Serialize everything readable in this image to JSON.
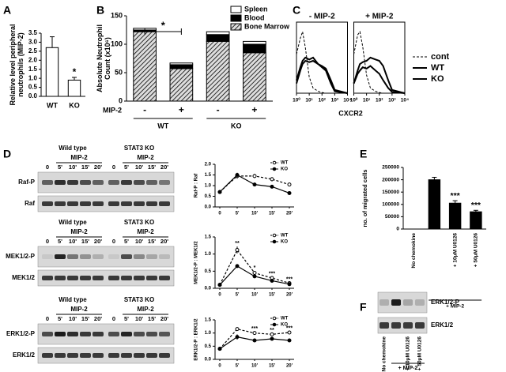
{
  "panel_labels": [
    "A",
    "B",
    "C",
    "D",
    "E",
    "F"
  ],
  "chart_data": [
    {
      "type": "bar",
      "y_label": "Relative level peripheral neutrophils (MIP-2)",
      "categories": [
        "WT",
        "KO"
      ],
      "values": [
        2.7,
        0.9
      ],
      "errors": [
        0.6,
        0.15
      ],
      "significance": [
        null,
        "*"
      ],
      "color": "#ffffff",
      "ylim": [
        0,
        3.5
      ],
      "yticks": [
        {
          "value": 0,
          "label": "0.0"
        },
        0.5,
        {
          "value": 1,
          "label": "1.0"
        },
        1.5,
        {
          "value": 2,
          "label": "2.0"
        },
        2.5,
        {
          "value": 3,
          "label": "3.0"
        },
        3.5
      ]
    },
    {
      "type": "stacked-bar",
      "y_label": "Absolute Neutrophil Count (x10⁶)",
      "categories": [
        "-",
        "+",
        "-",
        "+"
      ],
      "groups": [
        "WT",
        "KO"
      ],
      "x_label": "MIP-2",
      "annotation": "*",
      "series": [
        {
          "name": "Bone Marrow",
          "pattern": "hatch",
          "values": [
            122,
            57,
            105,
            85
          ]
        },
        {
          "name": "Blood",
          "color": "#000000",
          "values": [
            3,
            7,
            12,
            15
          ]
        },
        {
          "name": "Spleen",
          "color": "#ffffff",
          "values": [
            3,
            3,
            5,
            5
          ]
        }
      ],
      "ylim": [
        0,
        150
      ],
      "yticks": [
        0,
        50,
        100,
        150
      ]
    },
    {
      "type": "histogram-overlay",
      "x_label": "CXCR2",
      "log_x": true,
      "x": [
        1,
        2,
        3,
        5,
        10,
        20,
        50,
        100,
        200,
        500,
        1000,
        10000
      ],
      "xlim": [
        1,
        10000
      ],
      "xticks": [
        {
          "value": 1,
          "label": "10⁰"
        },
        {
          "value": 10,
          "label": "10¹"
        },
        {
          "value": 100,
          "label": "10²"
        },
        {
          "value": 1000,
          "label": "10³"
        },
        {
          "value": 10000,
          "label": "10⁴"
        }
      ],
      "ylim": [
        0,
        100
      ],
      "series": [
        {
          "name": "cont",
          "color": "#000000",
          "dash": true,
          "line_width": 1
        },
        {
          "name": "WT",
          "color": "#000000",
          "line_width": 2
        },
        {
          "name": "KO",
          "color": "#999999",
          "line_width": 2
        }
      ],
      "panels": [
        {
          "title": "- MIP-2",
          "values": [
            [
              60,
              85,
              95,
              70,
              25,
              8,
              3,
              1,
              0,
              0,
              0,
              0
            ],
            [
              20,
              40,
              50,
              55,
              52,
              55,
              45,
              40,
              35,
              15,
              3,
              0
            ],
            [
              15,
              35,
              45,
              50,
              48,
              50,
              45,
              42,
              38,
              20,
              5,
              0
            ]
          ]
        },
        {
          "title": "+ MIP-2",
          "values": [
            [
              60,
              90,
              95,
              72,
              28,
              8,
              3,
              1,
              0,
              0,
              0,
              0
            ],
            [
              15,
              30,
              35,
              40,
              38,
              42,
              35,
              30,
              20,
              8,
              2,
              0
            ],
            [
              15,
              35,
              45,
              48,
              50,
              55,
              52,
              50,
              42,
              20,
              5,
              0
            ]
          ]
        }
      ]
    },
    {
      "type": "line",
      "y_label": "Raf-P : Raf",
      "categories": [
        "0",
        "5'",
        "10'",
        "15'",
        "20'"
      ],
      "ylim": [
        0,
        2
      ],
      "yticks": [
        {
          "value": 0,
          "label": "0.0"
        },
        0.5,
        {
          "value": 1,
          "label": "1.0"
        },
        1.5,
        {
          "value": 2,
          "label": "2.0"
        }
      ],
      "series": [
        {
          "name": "WT",
          "color": "#000000",
          "dash": true,
          "marker": "open",
          "values": [
            0.7,
            1.45,
            1.45,
            1.3,
            1.05
          ],
          "errors": [
            0.05,
            0.12,
            0.1,
            0.1,
            0.08
          ]
        },
        {
          "name": "KO",
          "color": "#000000",
          "marker": "filled",
          "values": [
            0.7,
            1.5,
            1.05,
            0.95,
            0.65
          ],
          "errors": [
            0.05,
            0.1,
            0.08,
            0.05,
            0.05
          ]
        }
      ]
    },
    {
      "type": "line",
      "y_label": "MEK1/2-P : MEK1/2",
      "categories": [
        "0",
        "5'",
        "10'",
        "15'",
        "20'"
      ],
      "ylim": [
        0,
        1.5
      ],
      "yticks": [
        {
          "value": 0,
          "label": "0.0"
        },
        0.5,
        {
          "value": 1,
          "label": "1.0"
        },
        1.5
      ],
      "significance": [
        null,
        "**",
        "*",
        "***",
        "***"
      ],
      "series": [
        {
          "name": "WT",
          "color": "#000000",
          "dash": true,
          "marker": "open",
          "values": [
            0.1,
            1.12,
            0.45,
            0.3,
            0.15
          ],
          "errors": [
            0.02,
            0.1,
            0.05,
            0.03,
            0.02
          ]
        },
        {
          "name": "KO",
          "color": "#000000",
          "marker": "filled",
          "values": [
            0.1,
            0.65,
            0.35,
            0.22,
            0.12
          ],
          "errors": [
            0.02,
            0.05,
            0.04,
            0.03,
            0.02
          ]
        }
      ]
    },
    {
      "type": "line",
      "y_label": "ERK1/2-P : ERK1/2",
      "categories": [
        "0",
        "5'",
        "10'",
        "15'",
        "20'"
      ],
      "ylim": [
        0,
        1.5
      ],
      "yticks": [
        {
          "value": 0,
          "label": "0.0"
        },
        0.5,
        {
          "value": 1,
          "label": "1.0"
        },
        1.5
      ],
      "significance": [
        null,
        null,
        "***",
        "**",
        "***"
      ],
      "series": [
        {
          "name": "WT",
          "color": "#000000",
          "dash": true,
          "marker": "open",
          "values": [
            0.4,
            1.15,
            1.0,
            0.95,
            1.02
          ],
          "errors": [
            0.03,
            0.04,
            0.04,
            0.03,
            0.04
          ]
        },
        {
          "name": "KO",
          "color": "#000000",
          "marker": "filled",
          "values": [
            0.4,
            0.85,
            0.72,
            0.78,
            0.72
          ],
          "errors": [
            0.03,
            0.1,
            0.04,
            0.04,
            0.03
          ]
        }
      ]
    },
    {
      "type": "bar",
      "y_label": "no. of migrated cells",
      "categories": [
        "No chemokine",
        null,
        "+ 10μM U0126",
        "+ 50μM U0126"
      ],
      "group_label": "+ MIP-2",
      "values": [
        0,
        200000,
        105000,
        70000
      ],
      "errors": [
        null,
        10000,
        10000,
        6000
      ],
      "significance": [
        null,
        null,
        "***",
        "***"
      ],
      "color": "#000000",
      "ylim": [
        0,
        250000
      ],
      "yticks": [
        0,
        50000,
        100000,
        150000,
        200000,
        250000
      ]
    }
  ],
  "blots": {
    "D": {
      "groups": [
        "Wild type",
        "STAT3 KO"
      ],
      "treatment": "MIP-2",
      "lanes": [
        "0",
        "5'",
        "10'",
        "15'",
        "20'"
      ],
      "panels": [
        {
          "rows": [
            "Raf-P",
            "Raf"
          ]
        },
        {
          "rows": [
            "MEK1/2-P",
            "MEK1/2"
          ]
        },
        {
          "rows": [
            "ERK1/2-P",
            "ERK1/2"
          ]
        }
      ]
    },
    "F": {
      "rows": [
        "ERK1/2-P",
        "ERK1/2"
      ],
      "lanes": [
        "No chemokine",
        null,
        "+ 10μM U0126",
        "+ 50μM U0126"
      ],
      "treatment": "+ MIP-2"
    }
  }
}
